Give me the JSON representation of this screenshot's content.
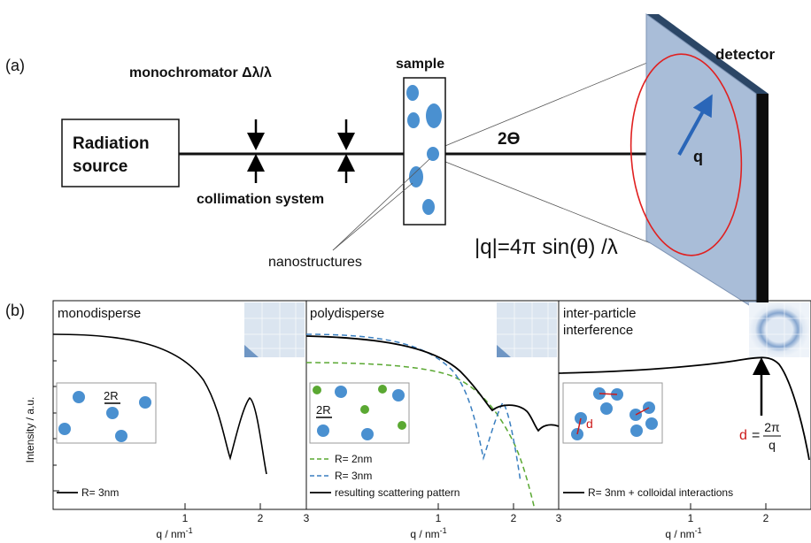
{
  "part_a": {
    "label": "(a)",
    "source_line1": "Radiation",
    "source_line2": "source",
    "monochromator": "monochromator Δλ/λ",
    "collimation": "collimation system",
    "sample": "sample",
    "detector": "detector",
    "angle": "2ϴ",
    "q_vector": "q",
    "nanostructures": "nanostructures",
    "formula": "|q|=4π sin(θ) /λ"
  },
  "part_b": {
    "label": "(b)",
    "ylabel": "Intensity / a.u.",
    "panels": [
      {
        "title": "monodisperse",
        "xlabel": "q / nm",
        "xlabel_sup": "-1",
        "ticks": [
          "1",
          "2",
          "3"
        ],
        "inset_label": "2R",
        "legend": [
          {
            "name": "R= 3nm",
            "color": "#000000",
            "style": "solid"
          }
        ]
      },
      {
        "title": "polydisperse",
        "xlabel": "q / nm",
        "xlabel_sup": "-1",
        "ticks": [
          "1",
          "2",
          "3"
        ],
        "inset_label": "2R",
        "legend": [
          {
            "name": "R= 2nm",
            "color": "#5aa832",
            "style": "dashed"
          },
          {
            "name": "R= 3nm",
            "color": "#3a7fc0",
            "style": "dashed"
          },
          {
            "name": "resulting scattering pattern",
            "color": "#000000",
            "style": "solid"
          }
        ]
      },
      {
        "title_line1": "inter-particle",
        "title_line2": "interference",
        "xlabel": "q / nm",
        "xlabel_sup": "-1",
        "ticks": [
          "1",
          "2"
        ],
        "inset_label": "d",
        "annot_d": "d",
        "annot_eq": "=",
        "annot_num": "2π",
        "annot_den": "q",
        "legend": [
          {
            "name": "R= 3nm + colloidal interactions",
            "color": "#000000",
            "style": "solid"
          }
        ]
      }
    ]
  },
  "colors": {
    "particle": "#4a90d0",
    "detector_face": "#a9bdd8",
    "detector_edge": "#1e3550",
    "ring": "#e02020",
    "green": "#5aa832",
    "blue": "#3a7fc0",
    "annot_red": "#cc1a1a"
  }
}
